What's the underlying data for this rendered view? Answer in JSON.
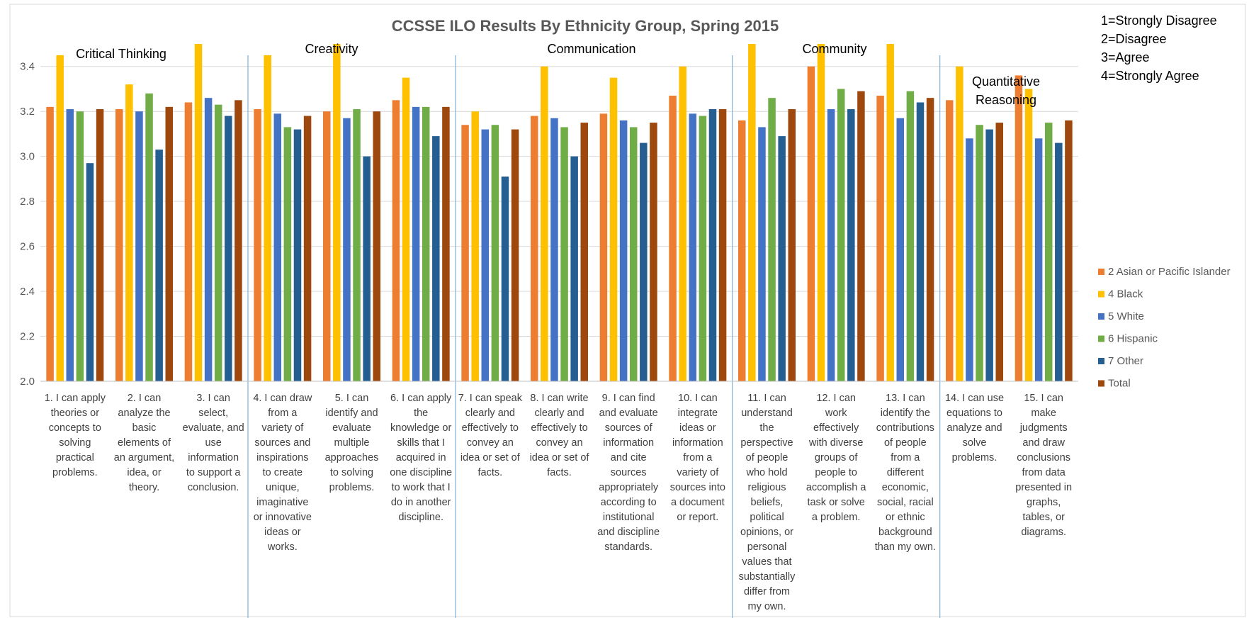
{
  "chart_data": {
    "type": "bar",
    "title": "CCSSE ILO Results By Ethnicity Group, Spring 2015",
    "xlabel": "",
    "ylabel": "",
    "ylim": [
      2.0,
      3.5
    ],
    "yticks": [
      "2.0",
      "2.2",
      "2.4",
      "2.6",
      "2.8",
      "3.0",
      "3.2",
      "3.4"
    ],
    "grid": true,
    "legend_position": "right",
    "scale_notes": [
      "1=Strongly Disagree",
      "2=Disagree",
      "3=Agree",
      "4=Strongly Agree"
    ],
    "groups": [
      {
        "label": [
          "Critical Thinking"
        ],
        "start": 0,
        "end": 2
      },
      {
        "label": [
          "Creativity"
        ],
        "start": 3,
        "end": 5
      },
      {
        "label": [
          "Communication"
        ],
        "start": 6,
        "end": 9
      },
      {
        "label": [
          "Community"
        ],
        "start": 10,
        "end": 12
      },
      {
        "label": [
          "Quantitative",
          "Reasoning"
        ],
        "start": 13,
        "end": 14
      }
    ],
    "categories": [
      [
        "1. I can apply",
        "theories or",
        "concepts to",
        "solving",
        "practical",
        "problems."
      ],
      [
        "2. I can",
        "analyze the",
        "basic",
        "elements of",
        "an argument,",
        "idea, or",
        "theory."
      ],
      [
        "3. I can",
        "select,",
        "evaluate, and",
        "use",
        "information",
        "to support a",
        "conclusion."
      ],
      [
        "4. I can draw",
        "from a",
        "variety of",
        "sources and",
        "inspirations",
        "to create",
        "unique,",
        "imaginative",
        "or innovative",
        "ideas or",
        "works."
      ],
      [
        "5. I can",
        "identify and",
        "evaluate",
        "multiple",
        "approaches",
        "to solving",
        "problems."
      ],
      [
        "6. I can apply",
        "the",
        "knowledge or",
        "skills that I",
        "acquired in",
        "one discipline",
        "to work that I",
        "do in another",
        "discipline."
      ],
      [
        "7. I can speak",
        "clearly and",
        "effectively to",
        "convey an",
        "idea or set of",
        "facts."
      ],
      [
        "8. I can write",
        "clearly and",
        "effectively to",
        "convey an",
        "idea or set of",
        "facts."
      ],
      [
        "9. I can find",
        "and evaluate",
        "sources of",
        "information",
        "and cite",
        "sources",
        "appropriately",
        "according to",
        "institutional",
        "and discipline",
        "standards."
      ],
      [
        "10. I can",
        "integrate",
        "ideas or",
        "information",
        "from a",
        "variety of",
        "sources into",
        "a document",
        "or report."
      ],
      [
        "11. I can",
        "understand",
        "the",
        "perspective",
        "of people",
        "who hold",
        "religious",
        "beliefs,",
        "political",
        "opinions, or",
        "personal",
        "values that",
        "substantially",
        "differ from",
        "my own."
      ],
      [
        "12. I can",
        "work",
        "effectively",
        "with diverse",
        "groups of",
        "people to",
        "accomplish a",
        "task or solve",
        "a problem."
      ],
      [
        "13. I can",
        "identify the",
        "contributions",
        "of people",
        "from a",
        "different",
        "economic,",
        "social, racial",
        "or ethnic",
        "background",
        "than my own."
      ],
      [
        "14. I can use",
        "equations to",
        "analyze and",
        "solve",
        "problems."
      ],
      [
        "15. I can",
        "make",
        "judgments",
        "and draw",
        "conclusions",
        "from data",
        "presented in",
        "graphs,",
        "tables, or",
        "diagrams."
      ]
    ],
    "series": [
      {
        "name": "2 Asian or Pacific Islander",
        "color": "#ED7D31",
        "values": [
          3.22,
          3.21,
          3.24,
          3.21,
          3.2,
          3.25,
          3.14,
          3.18,
          3.19,
          3.27,
          3.16,
          3.4,
          3.27,
          3.25,
          3.36
        ]
      },
      {
        "name": "4 Black",
        "color": "#FFC000",
        "values": [
          3.45,
          3.32,
          3.5,
          3.45,
          3.5,
          3.35,
          3.2,
          3.4,
          3.35,
          3.4,
          3.5,
          3.5,
          3.5,
          3.4,
          3.3
        ]
      },
      {
        "name": "5 White",
        "color": "#4472C4",
        "values": [
          3.21,
          3.2,
          3.26,
          3.19,
          3.17,
          3.22,
          3.12,
          3.17,
          3.16,
          3.19,
          3.13,
          3.21,
          3.17,
          3.08,
          3.08
        ]
      },
      {
        "name": "6 Hispanic",
        "color": "#70AD47",
        "values": [
          3.2,
          3.28,
          3.23,
          3.13,
          3.21,
          3.22,
          3.14,
          3.13,
          3.13,
          3.18,
          3.26,
          3.3,
          3.29,
          3.14,
          3.15
        ]
      },
      {
        "name": "7 Other",
        "color": "#255E91",
        "values": [
          2.97,
          3.03,
          3.18,
          3.12,
          3.0,
          3.09,
          2.91,
          3.0,
          3.06,
          3.21,
          3.09,
          3.21,
          3.24,
          3.12,
          3.06
        ]
      },
      {
        "name": "Total",
        "color": "#9E480E",
        "values": [
          3.21,
          3.22,
          3.25,
          3.18,
          3.2,
          3.22,
          3.12,
          3.15,
          3.15,
          3.21,
          3.21,
          3.29,
          3.26,
          3.15,
          3.16
        ]
      }
    ]
  }
}
